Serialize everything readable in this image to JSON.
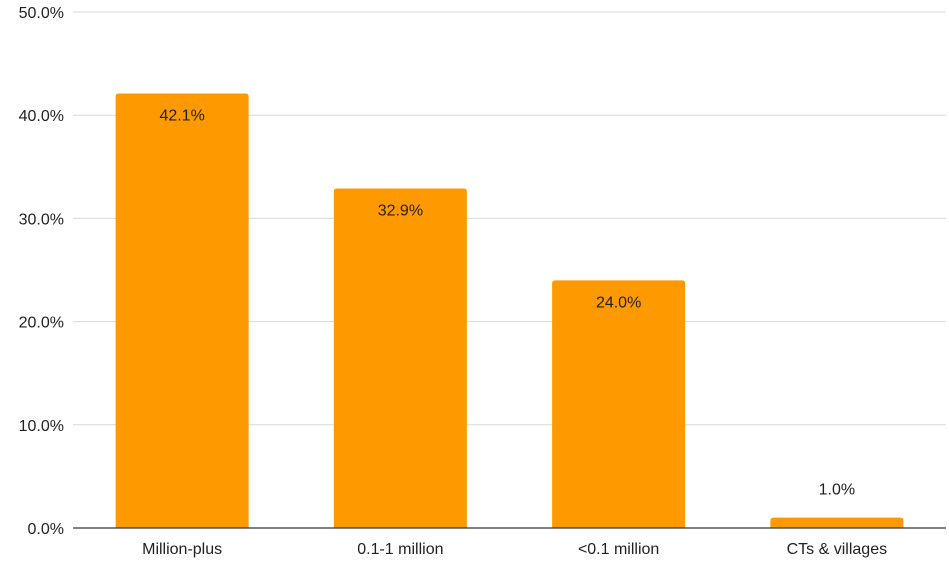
{
  "chart_data": {
    "type": "bar",
    "title": "",
    "xlabel": "",
    "ylabel": "",
    "categories": [
      "Million-plus",
      "0.1-1 million",
      "<0.1 million",
      "CTs & villages"
    ],
    "values": [
      42.1,
      32.9,
      24.0,
      1.0
    ],
    "data_labels": [
      "42.1%",
      "32.9%",
      "24.0%",
      "1.0%"
    ],
    "ylim": [
      0,
      50
    ],
    "y_ticks": [
      0,
      10,
      20,
      30,
      40,
      50
    ],
    "y_tick_labels": [
      "0.0%",
      "10.0%",
      "20.0%",
      "30.0%",
      "40.0%",
      "50.0%"
    ],
    "grid": true,
    "legend": "none",
    "bar_color": "#FF9900"
  }
}
